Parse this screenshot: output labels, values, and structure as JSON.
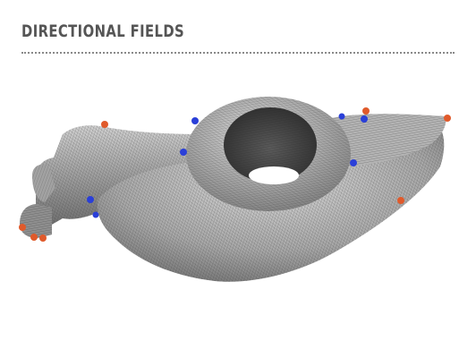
{
  "header": {
    "title": "DIRECTIONAL FIELDS"
  },
  "figure": {
    "subject": "3D mechanical part (rocker arm) rendered with a cross-hatched directional field",
    "surface_color": "#9a9a9a",
    "hatch_color": "#3a3a3a",
    "singularity_colors": {
      "positive": "#e05a2b",
      "negative": "#2a3fd8"
    }
  }
}
